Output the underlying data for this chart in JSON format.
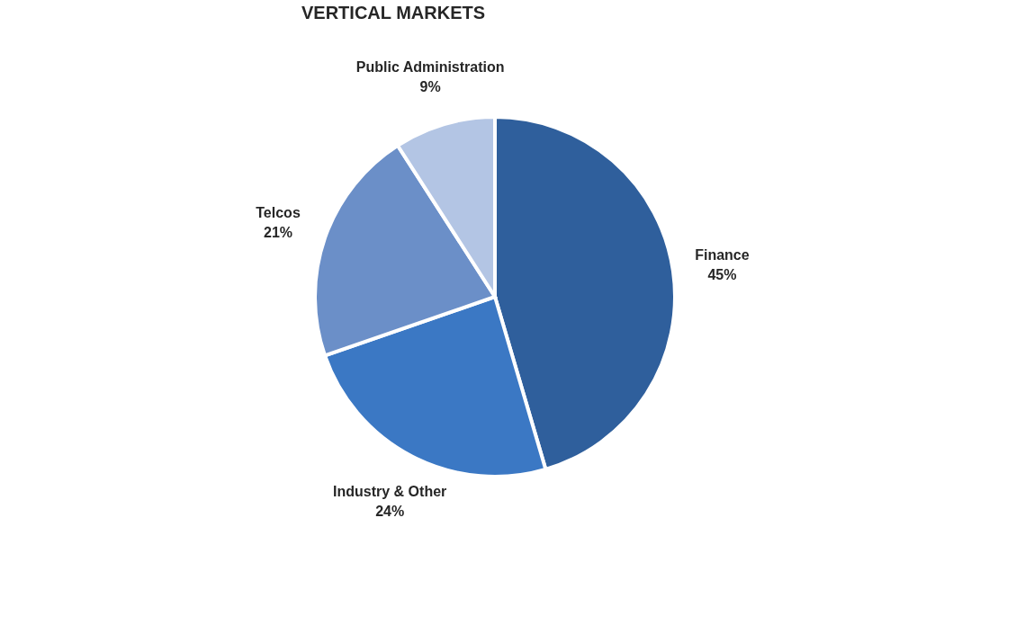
{
  "chart_data": {
    "type": "pie",
    "title": "VERTICAL MARKETS",
    "categories": [
      "Finance",
      "Industry & Other",
      "Telcos",
      "Public Administration"
    ],
    "values": [
      45,
      24,
      21,
      9
    ],
    "colors": [
      "#2f5f9c",
      "#3b78c4",
      "#6b8fc8",
      "#b3c5e4"
    ],
    "value_labels": [
      "45%",
      "24%",
      "21%",
      "9%"
    ],
    "legend": false
  }
}
